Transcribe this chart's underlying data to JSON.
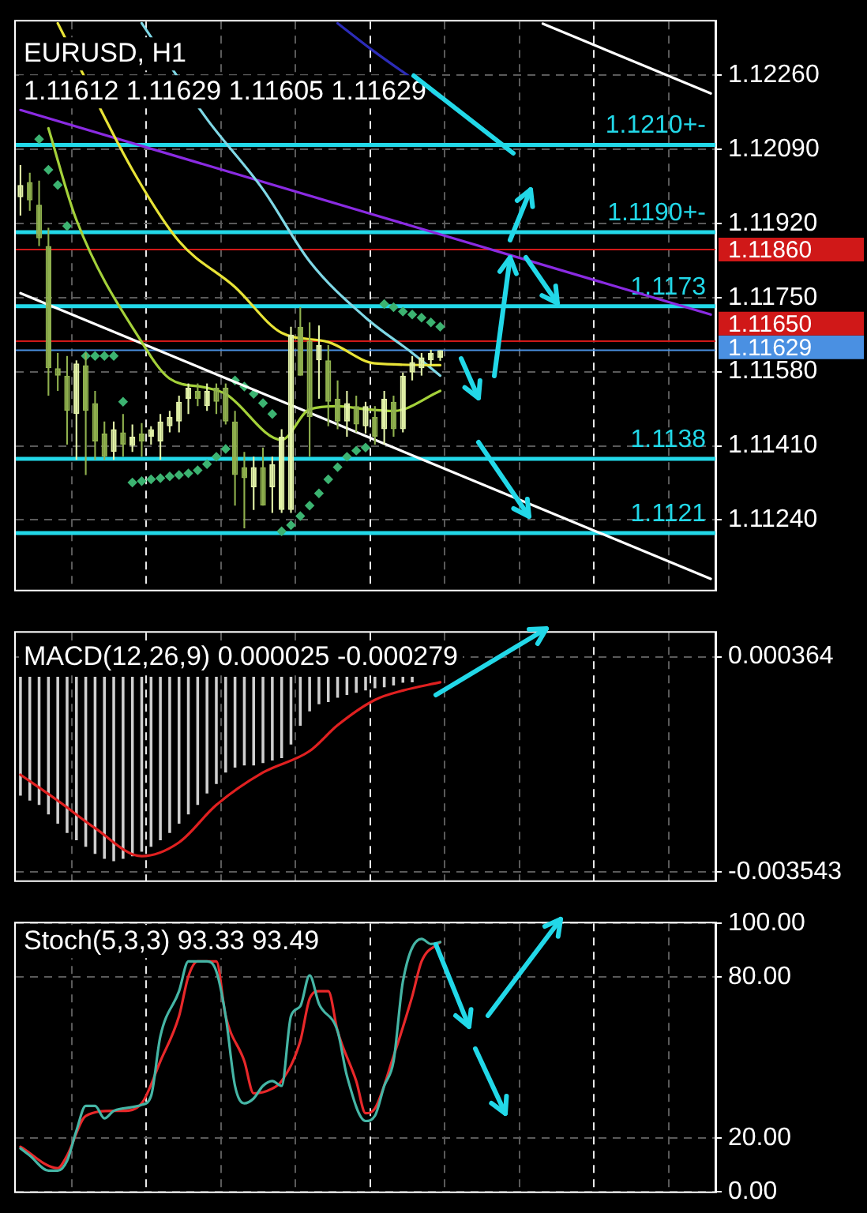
{
  "chart_data": [
    {
      "type": "candlestick",
      "title": "EURUSD, H1",
      "subtitle": "1.11612 1.11629 1.11605 1.11629",
      "colors": [
        "#e2f2a8",
        "#8fb04e",
        "#8fb04e",
        "#8fb04e",
        "#8fb04e",
        "#8fb04e",
        "#e2f2a8",
        "#8fb04e",
        "#8fb04e",
        "#8fb04e",
        "#e2f2a8",
        "#8fb04e",
        "#e2f2a8",
        "#8fb04e",
        "#e2f2a8",
        "#e2f2a8",
        "#e2f2a8",
        "#e2f2a8",
        "#e2f2a8",
        "#8fb04e",
        "#e2f2a8",
        "#8fb04e",
        "#8fb04e",
        "#8fb04e",
        "#8fb04e",
        "#e2f2a8",
        "#8fb04e",
        "#e2f2a8",
        "#e2f2a8",
        "#e2f2a8",
        "#8fb04e",
        "#8fb04e",
        "#e2f2a8",
        "#8fb04e",
        "#8fb04e",
        "#e2f2a8",
        "#8fb04e",
        "#e2f2a8",
        "#8fb04e",
        "#e2f2a8",
        "#8fb04e",
        "#e2f2a8",
        "#e2f2a8",
        "#e2f2a8",
        "#e2f2a8",
        "#e2f2a8",
        null,
        null,
        null,
        null,
        null,
        null,
        null,
        null,
        null,
        null,
        null,
        null,
        null,
        null,
        null,
        null,
        null,
        null,
        null,
        null,
        null,
        null,
        null,
        null,
        null,
        null,
        null,
        null,
        null
      ],
      "categories": [
        null,
        null,
        null,
        null,
        null,
        null,
        null,
        null,
        null,
        null,
        null,
        null,
        null,
        null,
        null,
        null,
        null,
        null,
        null,
        null,
        null,
        null,
        null,
        null,
        null,
        null,
        null,
        null,
        null,
        null,
        null,
        null,
        null,
        null,
        null,
        null,
        null,
        null,
        null,
        null,
        null,
        null,
        null,
        null,
        null,
        null,
        null,
        null,
        null,
        null,
        null,
        null,
        null,
        null,
        null,
        null,
        null,
        null,
        null,
        null,
        null,
        null,
        null,
        null,
        null,
        null,
        null,
        null,
        null,
        null,
        null,
        null,
        null,
        null,
        null
      ],
      "ohlc": [
        [
          1.1198,
          1.12054,
          1.11938,
          1.12008
        ],
        [
          1.12015,
          1.12036,
          1.11949,
          1.11973
        ],
        [
          1.11963,
          1.12018,
          1.11868,
          1.11886
        ],
        [
          1.11868,
          1.1191,
          1.11525,
          1.11588
        ],
        [
          1.11588,
          1.11623,
          1.11536,
          1.11571
        ],
        [
          1.11571,
          1.11616,
          1.11413,
          1.1149
        ],
        [
          1.11483,
          1.11606,
          1.11378,
          1.11599
        ],
        [
          1.11595,
          1.11623,
          1.11343,
          1.1149
        ],
        [
          1.11508,
          1.11536,
          1.11378,
          1.1142
        ],
        [
          1.11438,
          1.11466,
          1.11378,
          1.11385
        ],
        [
          1.11396,
          1.11466,
          1.11378,
          1.11448
        ],
        [
          1.11441,
          1.11483,
          1.11385,
          1.11413
        ],
        [
          1.1141,
          1.11459,
          1.11396,
          1.11431
        ],
        [
          1.11438,
          1.11462,
          1.11385,
          1.1142
        ],
        [
          1.11431,
          1.11455,
          1.11413,
          1.11448
        ],
        [
          1.1142,
          1.11483,
          1.11378,
          1.11466
        ],
        [
          1.11455,
          1.1149,
          1.11441,
          1.11476
        ],
        [
          1.11466,
          1.11525,
          1.11441,
          1.11511
        ],
        [
          1.11518,
          1.11553,
          1.11483,
          1.11543
        ],
        [
          1.11536,
          1.11553,
          1.11501,
          1.11518
        ],
        [
          1.11501,
          1.11553,
          1.1149,
          1.11536
        ],
        [
          1.11543,
          1.11553,
          1.11483,
          1.11511
        ],
        [
          1.11543,
          1.11553,
          1.11459,
          1.11466
        ],
        [
          1.11466,
          1.1149,
          1.11273,
          1.11343
        ],
        [
          1.11361,
          1.11396,
          1.11221,
          1.11336
        ],
        [
          1.11315,
          1.11385,
          1.11263,
          1.11361
        ],
        [
          1.11361,
          1.11406,
          1.11273,
          1.11273
        ],
        [
          1.11315,
          1.11385,
          1.11256,
          1.11368
        ],
        [
          1.11263,
          1.11448,
          1.11256,
          1.11431
        ],
        [
          1.11263,
          1.11683,
          1.11256,
          1.11665
        ],
        [
          1.11683,
          1.11728,
          1.11571,
          1.11571
        ],
        [
          1.11651,
          1.11693,
          1.11385,
          1.11476
        ],
        [
          1.11606,
          1.11686,
          1.11518,
          1.11641
        ],
        [
          1.11606,
          1.11641,
          1.11455,
          1.11511
        ],
        [
          1.11518,
          1.1156,
          1.11448,
          1.11466
        ],
        [
          1.11466,
          1.11536,
          1.11431,
          1.11508
        ],
        [
          1.11501,
          1.11525,
          1.11441,
          1.11459
        ],
        [
          1.11455,
          1.11511,
          1.11438,
          1.11501
        ],
        [
          1.11476,
          1.11501,
          1.11413,
          1.11431
        ],
        [
          1.11448,
          1.11536,
          1.11413,
          1.11518
        ],
        [
          1.11511,
          1.11525,
          1.11431,
          1.11448
        ],
        [
          1.11448,
          1.11578,
          1.11441,
          1.11571
        ],
        [
          1.11578,
          1.11616,
          1.1156,
          1.11602
        ],
        [
          1.11588,
          1.11623,
          1.11571,
          1.11613
        ],
        [
          1.11606,
          1.1163,
          1.11595,
          1.11623
        ],
        [
          1.11612,
          1.11629,
          1.11605,
          1.11629
        ],
        null,
        null,
        null,
        null,
        null,
        null,
        null,
        null,
        null,
        null,
        null,
        null,
        null,
        null,
        null,
        null,
        null,
        null,
        null,
        null,
        null,
        null,
        null,
        null,
        null,
        null,
        null,
        null,
        null
      ],
      "series": [
        {
          "type": "line",
          "color": "#a4d13a",
          "values": [
            null,
            null,
            null,
            1.12138,
            null,
            null,
            1.11928,
            null,
            null,
            null,
            null,
            null,
            null,
            1.11648,
            null,
            null,
            1.11564,
            null,
            null,
            null,
            1.11543,
            null,
            1.11529,
            null,
            null,
            null,
            null,
            null,
            1.11424,
            null,
            null,
            1.11494,
            null,
            null,
            1.11501,
            null,
            null,
            1.11494,
            null,
            null,
            1.1149,
            null,
            null,
            null,
            null,
            1.11536,
            null,
            null,
            null,
            null,
            null,
            null,
            null,
            null,
            null,
            null,
            null,
            null,
            null,
            null,
            null,
            null,
            null,
            null,
            null,
            null,
            null,
            null,
            null,
            null,
            null,
            null,
            null,
            null,
            null
          ]
        },
        {
          "type": "line",
          "color": "#e8e337",
          "values": [
            null,
            null,
            null,
            null,
            1.12379,
            null,
            null,
            null,
            null,
            null,
            null,
            null,
            1.12043,
            null,
            null,
            null,
            null,
            1.11879,
            null,
            null,
            null,
            null,
            null,
            1.11774,
            null,
            null,
            null,
            null,
            1.11669,
            null,
            null,
            null,
            null,
            1.11648,
            null,
            null,
            null,
            null,
            1.11599,
            null,
            null,
            null,
            null,
            null,
            null,
            1.11595,
            null,
            null,
            null,
            null,
            null,
            null,
            null,
            null,
            null,
            null,
            null,
            null,
            null,
            null,
            null,
            null,
            null,
            null,
            null,
            null,
            null,
            null,
            null,
            null,
            null,
            null,
            null,
            null,
            null
          ]
        },
        {
          "type": "line",
          "color": "#7fd8e6",
          "values": [
            null,
            null,
            null,
            null,
            null,
            null,
            null,
            null,
            null,
            null,
            null,
            null,
            null,
            1.12379,
            null,
            null,
            null,
            null,
            null,
            null,
            1.12159,
            null,
            null,
            null,
            null,
            null,
            1.11998,
            null,
            null,
            null,
            null,
            1.11833,
            null,
            null,
            null,
            null,
            null,
            1.11704,
            null,
            null,
            null,
            null,
            1.11623,
            null,
            null,
            1.11571,
            null,
            null,
            null,
            null,
            null,
            null,
            null,
            null,
            null,
            null,
            null,
            null,
            null,
            null,
            null,
            null,
            null,
            null,
            null,
            null,
            null,
            null,
            null,
            null,
            null,
            null,
            null,
            null,
            null
          ]
        },
        {
          "type": "line",
          "color": "#2c2cb8",
          "values": [
            null,
            null,
            null,
            null,
            null,
            null,
            null,
            null,
            null,
            null,
            null,
            null,
            null,
            null,
            null,
            null,
            null,
            null,
            null,
            null,
            null,
            null,
            null,
            null,
            null,
            null,
            null,
            null,
            null,
            null,
            null,
            null,
            null,
            null,
            1.12379,
            null,
            null,
            null,
            1.12313,
            null,
            null,
            null,
            null,
            null,
            null,
            1.12208,
            null,
            null,
            null,
            null,
            null,
            null,
            null,
            null,
            null,
            null,
            null,
            null,
            null,
            null,
            null,
            null,
            null,
            null,
            null,
            null,
            null,
            null,
            null,
            null,
            null,
            null,
            null,
            null,
            null
          ]
        },
        {
          "type": "line",
          "color": "#8a2be2",
          "values": [
            1.1218,
            null,
            null,
            null,
            null,
            null,
            null,
            null,
            null,
            null,
            null,
            null,
            null,
            null,
            null,
            null,
            null,
            null,
            null,
            null,
            null,
            null,
            null,
            null,
            null,
            null,
            null,
            null,
            null,
            null,
            null,
            null,
            null,
            null,
            null,
            null,
            null,
            null,
            null,
            null,
            null,
            null,
            null,
            null,
            null,
            null,
            null,
            null,
            null,
            null,
            null,
            null,
            null,
            null,
            null,
            null,
            null,
            null,
            null,
            null,
            null,
            null,
            null,
            null,
            null,
            null,
            null,
            null,
            null,
            null,
            null,
            null,
            null,
            null,
            1.11711
          ]
        },
        {
          "type": "line",
          "color": "#ffffff",
          "values": [
            1.1176,
            null,
            null,
            null,
            null,
            null,
            null,
            null,
            null,
            null,
            null,
            null,
            null,
            null,
            null,
            null,
            null,
            null,
            null,
            null,
            null,
            null,
            null,
            null,
            null,
            null,
            null,
            null,
            null,
            null,
            null,
            null,
            null,
            null,
            null,
            null,
            null,
            null,
            null,
            null,
            null,
            null,
            null,
            null,
            null,
            null,
            null,
            null,
            null,
            null,
            null,
            null,
            null,
            null,
            null,
            null,
            null,
            null,
            null,
            null,
            null,
            null,
            null,
            null,
            null,
            null,
            null,
            null,
            null,
            null,
            null,
            null,
            null,
            null,
            1.11105
          ]
        },
        {
          "type": "line",
          "color": "#ffffff",
          "values": [
            null,
            null,
            null,
            null,
            null,
            null,
            null,
            null,
            null,
            null,
            null,
            null,
            null,
            null,
            null,
            null,
            null,
            null,
            null,
            null,
            null,
            null,
            null,
            null,
            null,
            null,
            null,
            null,
            null,
            null,
            null,
            null,
            null,
            null,
            null,
            null,
            null,
            null,
            null,
            null,
            null,
            null,
            null,
            null,
            null,
            null,
            null,
            null,
            null,
            null,
            null,
            null,
            null,
            null,
            null,
            null,
            1.12378,
            null,
            null,
            null,
            null,
            null,
            null,
            null,
            null,
            null,
            null,
            null,
            null,
            null,
            null,
            null,
            null,
            null,
            1.12218
          ]
        },
        {
          "type": "scatter",
          "color": "#3cb371",
          "marker": "diamond",
          "values": [
            null,
            null,
            1.12113,
            1.12043,
            1.12008,
            1.11914,
            null,
            1.11616,
            1.11616,
            1.11616,
            1.11616,
            1.11511,
            1.11326,
            1.11329,
            1.11333,
            1.11336,
            1.1134,
            1.11343,
            1.11347,
            1.11354,
            1.11368,
            1.11385,
            1.11403,
            1.1156,
            1.11546,
            1.11529,
            1.11508,
            1.11483,
            1.11214,
            1.11228,
            1.11249,
            1.11273,
            1.11301,
            1.11333,
            1.11361,
            1.11385,
            1.11399,
            1.11406,
            null,
            1.11735,
            1.11728,
            1.11718,
            1.11711,
            1.11704,
            1.11693,
            1.11683,
            null,
            null,
            null,
            null,
            null,
            null,
            null,
            null,
            null,
            null,
            null,
            null,
            null,
            null,
            null,
            null,
            null,
            null,
            null,
            null,
            null,
            null,
            null,
            null,
            null,
            null,
            null,
            null,
            null
          ]
        }
      ],
      "ylim": [
        1.1108,
        1.12383
      ],
      "yticks": [
        {
          "value": 1.1226,
          "label": "1.12260"
        },
        {
          "value": 1.1209,
          "label": "1.12090"
        },
        {
          "value": 1.1192,
          "label": "1.11920"
        },
        {
          "value": 1.1175,
          "label": "1.11750"
        },
        {
          "value": 1.1158,
          "label": "1.11580"
        },
        {
          "value": 1.1141,
          "label": "1.11410"
        },
        {
          "value": 1.1124,
          "label": "1.11240"
        }
      ],
      "grid": true,
      "tick_labels": "y",
      "ref_lines": [
        {
          "axis": "y",
          "value": 1.1186,
          "color": "#d01818"
        },
        {
          "axis": "y",
          "value": 1.1165,
          "color": "#d01818"
        },
        {
          "axis": "y",
          "value": 1.11629,
          "color": "#4a90e2"
        },
        {
          "axis": "y",
          "value": 1.121,
          "label": "1.1210+-",
          "color": "#22d8e8"
        },
        {
          "axis": "y",
          "value": 1.119,
          "label": "1.1190+-",
          "color": "#22d8e8"
        },
        {
          "axis": "y",
          "value": 1.1173,
          "label": "1.1173",
          "color": "#22d8e8"
        },
        {
          "axis": "y",
          "value": 1.1138,
          "label": "1.1138",
          "color": "#22d8e8"
        },
        {
          "axis": "y",
          "value": 1.1121,
          "label": "1.1121",
          "color": "#22d8e8"
        }
      ],
      "annotations": [
        "1.11860",
        "1.11650",
        "1.11629"
      ]
    },
    {
      "type": "bar",
      "title": "MACD(12,26,9) 0.000025 -0.000279",
      "categories": [
        null,
        null,
        null,
        null,
        null,
        null,
        null,
        null,
        null,
        null,
        null,
        null,
        null,
        null,
        null,
        null,
        null,
        null,
        null,
        null,
        null,
        null,
        null,
        null,
        null,
        null,
        null,
        null,
        null,
        null,
        null,
        null,
        null,
        null,
        null,
        null,
        null,
        null,
        null,
        null,
        null,
        null,
        null,
        null,
        null,
        null,
        null,
        null,
        null,
        null,
        null,
        null,
        null,
        null,
        null,
        null,
        null,
        null,
        null,
        null,
        null,
        null,
        null,
        null,
        null,
        null,
        null,
        null,
        null,
        null,
        null,
        null,
        null,
        null,
        null
      ],
      "series": [
        {
          "color": "#cfcfcf",
          "values": [
            -0.00216,
            -0.00225,
            -0.00233,
            -0.0025,
            -0.00267,
            -0.00284,
            -0.00297,
            -0.00309,
            -0.00322,
            -0.00331,
            -0.00335,
            -0.00331,
            -0.00326,
            -0.00318,
            -0.00309,
            -0.00297,
            -0.00284,
            -0.00267,
            -0.0025,
            -0.00233,
            -0.00212,
            -0.00195,
            -0.00174,
            -0.00165,
            -0.00161,
            -0.00161,
            -0.00157,
            -0.00152,
            -0.00148,
            -0.00123,
            -0.00089,
            -0.00063,
            -0.0005,
            -0.00046,
            -0.00038,
            -0.00033,
            -0.00029,
            -0.00025,
            -0.00021,
            -0.00019,
            -0.00016,
            -0.00011,
            -0.0001,
            0,
            0,
            0,
            null,
            null,
            null,
            null,
            null,
            null,
            null,
            null,
            null,
            null,
            null,
            null,
            null,
            null,
            null,
            null,
            null,
            null,
            null,
            null,
            null,
            null,
            null,
            null,
            null,
            null,
            null,
            null,
            null
          ]
        },
        {
          "type": "line",
          "color": "#e02020",
          "values": [
            -0.00178,
            null,
            null,
            null,
            -0.00225,
            null,
            null,
            null,
            -0.00275,
            null,
            null,
            null,
            null,
            -0.00326,
            null,
            null,
            null,
            -0.00301,
            null,
            null,
            null,
            -0.00233,
            null,
            null,
            null,
            null,
            -0.00174,
            null,
            null,
            null,
            null,
            -0.00135,
            null,
            null,
            -0.00088,
            null,
            null,
            null,
            -0.00042,
            null,
            null,
            -0.00025,
            null,
            null,
            null,
            -0.0001,
            null,
            null,
            null,
            null,
            null,
            null,
            null,
            null,
            null,
            null,
            null,
            null,
            null,
            null,
            null,
            null,
            null,
            null,
            null,
            null,
            null,
            null,
            null,
            null,
            null,
            null,
            null,
            null,
            null
          ]
        }
      ],
      "ylim": [
        -0.0037,
        0.0008
      ],
      "yticks": [
        {
          "value": 0.000364,
          "label": "0.000364"
        },
        {
          "value": -0.003543,
          "label": "-0.003543"
        }
      ],
      "grid": true,
      "tick_labels": "y"
    },
    {
      "type": "line",
      "title": "Stoch(5,3,3) 93.33 93.49",
      "categories": [
        null,
        null,
        null,
        null,
        null,
        null,
        null,
        null,
        null,
        null,
        null,
        null,
        null,
        null,
        null,
        null,
        null,
        null,
        null,
        null,
        null,
        null,
        null,
        null,
        null,
        null,
        null,
        null,
        null,
        null,
        null,
        null,
        null,
        null,
        null,
        null,
        null,
        null,
        null,
        null,
        null,
        null,
        null,
        null,
        null,
        null,
        null,
        null,
        null,
        null,
        null,
        null,
        null,
        null,
        null,
        null,
        null,
        null,
        null,
        null,
        null,
        null,
        null,
        null,
        null,
        null,
        null,
        null,
        null,
        null,
        null,
        null,
        null,
        null,
        null
      ],
      "series": [
        {
          "color": "#45b5a5",
          "values": [
            16.1,
            13.4,
            null,
            7.8,
            7.8,
            11.5,
            22.7,
            31.9,
            31.9,
            27.3,
            30.1,
            31,
            null,
            32.3,
            35.6,
            57.9,
            null,
            74.7,
            85.8,
            null,
            85.8,
            82.1,
            65.4,
            39.4,
            32.9,
            34.7,
            39.4,
            41.2,
            39.4,
            65.4,
            69.1,
            80.6,
            70,
            null,
            59.8,
            43.1,
            null,
            26.3,
            28.2,
            39.4,
            48.6,
            78.3,
            null,
            94.2,
            92.3,
            93,
            null,
            null,
            null,
            null,
            null,
            null,
            null,
            null,
            null,
            null,
            null,
            null,
            null,
            null,
            null,
            null,
            null,
            null,
            null,
            null,
            null,
            null,
            null,
            null,
            null,
            null,
            null,
            null,
            null
          ]
        },
        {
          "color": "#e8282a",
          "values": [
            16.7,
            null,
            null,
            null,
            8.7,
            13.4,
            null,
            28.2,
            null,
            null,
            30.1,
            30.1,
            null,
            32.9,
            null,
            48.6,
            null,
            65.4,
            80.2,
            85.8,
            null,
            85.8,
            65.4,
            null,
            48.6,
            36.6,
            null,
            38.4,
            41.2,
            null,
            56.1,
            71.9,
            74.7,
            74.7,
            59.8,
            null,
            41.2,
            29.2,
            31,
            null,
            50.5,
            null,
            72.8,
            85.8,
            null,
            93,
            null,
            null,
            null,
            null,
            null,
            null,
            null,
            null,
            null,
            null,
            null,
            null,
            null,
            null,
            null,
            null,
            null,
            null,
            null,
            null,
            null,
            null,
            null,
            null,
            null,
            null,
            null,
            null,
            null
          ]
        }
      ],
      "ylim": [
        0,
        100
      ],
      "yticks": [
        {
          "value": 100,
          "label": "100.00"
        },
        {
          "value": 80,
          "label": "80.00"
        },
        {
          "value": 20,
          "label": "20.00"
        },
        {
          "value": 0,
          "label": "0.00"
        }
      ],
      "grid": true,
      "tick_labels": "y"
    }
  ]
}
